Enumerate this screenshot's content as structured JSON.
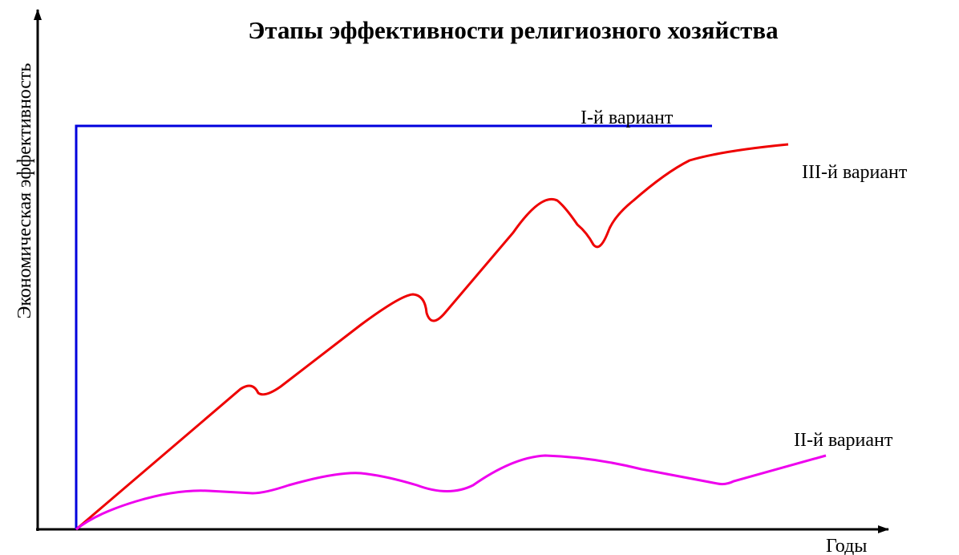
{
  "title": "Этапы эффективности религиозного хозяйства",
  "y_axis_label": "Экономическая эффективность",
  "x_axis_label": "Годы",
  "curves": [
    {
      "label": "I-й вариант"
    },
    {
      "label": "II-й вариант"
    },
    {
      "label": "III-й вариант"
    }
  ]
}
